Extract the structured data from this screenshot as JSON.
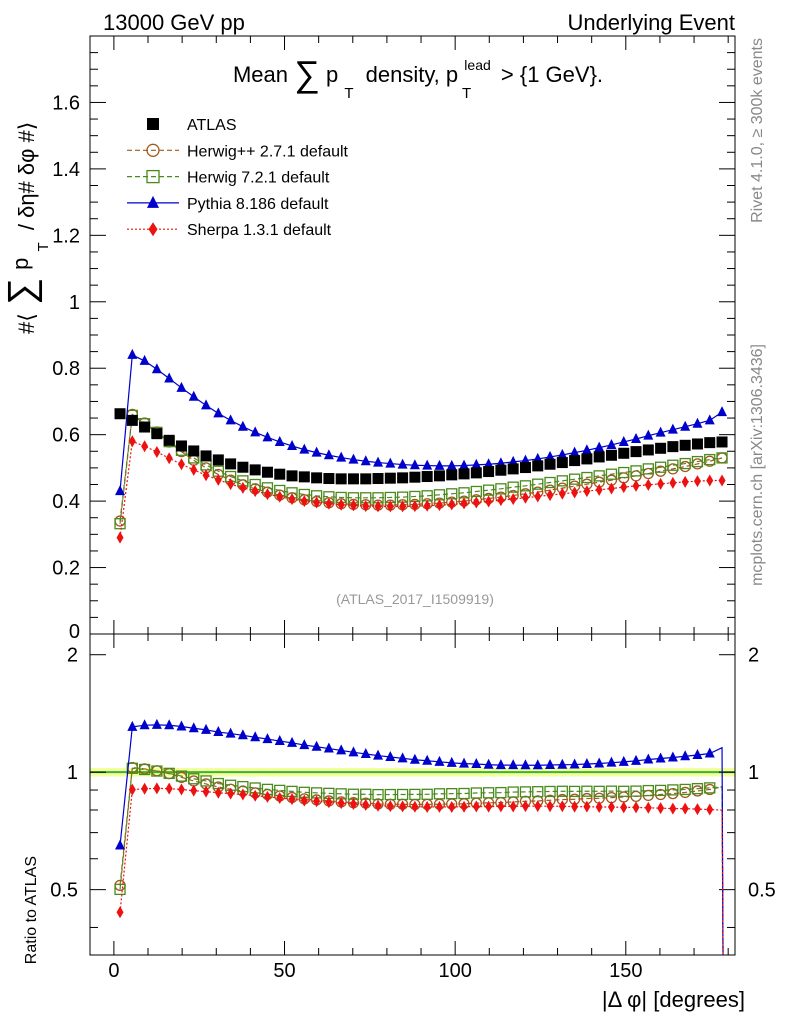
{
  "header": {
    "left": "13000 GeV pp",
    "right": "Underlying Event"
  },
  "side_labels": {
    "rivet": "Rivet 4.1.0, ≥ 300k events",
    "mcplots": "mcplots.cern.ch [arXiv:1306.3436]"
  },
  "chart_data": {
    "type": "scatter",
    "title": "Mean ∑ pT density, pT lead > {1 GeV}",
    "title_parts": {
      "mean": "Mean",
      "sigma": "∑",
      "p": "p",
      "sub": "T",
      "density": "density,",
      "p2": "p",
      "lead": "lead",
      "gt": "> {1 GeV}."
    },
    "reference": "(ATLAS_2017_I1509919)",
    "xlabel": "|Δ φ| [degrees]",
    "ylabel": "#⟨ ∑ pT / δη# δφ #⟩",
    "ylabel_parts": {
      "open": "#⟨",
      "sigma": "∑",
      "p": "p",
      "sub": "T",
      "rest": "/ δη# δφ #⟩"
    },
    "ratio_ylabel": "Ratio to ATLAS",
    "xlim": [
      -7,
      182
    ],
    "ylim": [
      0,
      1.8
    ],
    "ratio_ylim": [
      0.34,
      2.26
    ],
    "x_ticks": [
      "0",
      "50",
      "100",
      "150"
    ],
    "x_tick_values": [
      0,
      50,
      100,
      150
    ],
    "y_ticks": [
      "0.2",
      "0.4",
      "0.6",
      "0.8",
      "1",
      "1.2",
      "1.4",
      "1.6"
    ],
    "y_tick_values": [
      0.2,
      0.4,
      0.6,
      0.8,
      1.0,
      1.2,
      1.4,
      1.6
    ],
    "y_zero_label": "0",
    "ratio_ticks": [
      "0.5",
      "1",
      "2"
    ],
    "ratio_tick_values": [
      0.5,
      1,
      2
    ],
    "x": [
      1.8,
      5.4,
      9.0,
      12.6,
      16.2,
      19.8,
      23.4,
      27.0,
      30.6,
      34.2,
      37.8,
      41.4,
      45.0,
      48.6,
      52.2,
      55.8,
      59.4,
      63.0,
      66.6,
      70.2,
      73.8,
      77.4,
      81.0,
      84.6,
      88.2,
      91.8,
      95.4,
      99.0,
      102.6,
      106.2,
      109.8,
      113.4,
      117.0,
      120.6,
      124.2,
      127.8,
      131.4,
      135.0,
      138.6,
      142.2,
      145.8,
      149.4,
      153.0,
      156.6,
      160.2,
      163.8,
      167.4,
      171.0,
      174.6,
      178.2
    ],
    "series": [
      {
        "name": "ATLAS",
        "legend": "ATLAS",
        "color": "#000000",
        "marker": "square-filled",
        "line": "none",
        "values": [
          0.663,
          0.643,
          0.623,
          0.603,
          0.583,
          0.566,
          0.551,
          0.536,
          0.524,
          0.512,
          0.502,
          0.494,
          0.487,
          0.481,
          0.476,
          0.473,
          0.47,
          0.468,
          0.467,
          0.467,
          0.467,
          0.468,
          0.469,
          0.47,
          0.472,
          0.474,
          0.476,
          0.479,
          0.482,
          0.485,
          0.489,
          0.493,
          0.497,
          0.501,
          0.506,
          0.511,
          0.516,
          0.522,
          0.527,
          0.533,
          0.538,
          0.544,
          0.549,
          0.554,
          0.559,
          0.564,
          0.568,
          0.572,
          0.576,
          0.578
        ]
      },
      {
        "name": "Herwig++ 2.7.1 default",
        "legend": "Herwig++ 2.7.1 default",
        "color": "#a0581c",
        "marker": "circle-open",
        "line": "dashed",
        "values": [
          0.34,
          0.661,
          0.635,
          0.608,
          0.578,
          0.549,
          0.523,
          0.5,
          0.48,
          0.463,
          0.449,
          0.437,
          0.427,
          0.418,
          0.41,
          0.404,
          0.399,
          0.395,
          0.392,
          0.39,
          0.389,
          0.388,
          0.388,
          0.389,
          0.39,
          0.392,
          0.394,
          0.397,
          0.4,
          0.404,
          0.408,
          0.412,
          0.417,
          0.422,
          0.427,
          0.433,
          0.439,
          0.445,
          0.451,
          0.457,
          0.463,
          0.47,
          0.476,
          0.483,
          0.49,
          0.497,
          0.504,
          0.512,
          0.52,
          0.53
        ]
      },
      {
        "name": "Herwig 7.2.1 default",
        "legend": "Herwig 7.2.1 default",
        "color": "#4a8a1c",
        "marker": "square-open",
        "line": "dashed",
        "values": [
          0.332,
          0.658,
          0.633,
          0.607,
          0.579,
          0.553,
          0.53,
          0.509,
          0.49,
          0.474,
          0.461,
          0.45,
          0.44,
          0.432,
          0.425,
          0.42,
          0.416,
          0.413,
          0.411,
          0.41,
          0.41,
          0.41,
          0.411,
          0.412,
          0.414,
          0.416,
          0.419,
          0.422,
          0.425,
          0.429,
          0.433,
          0.437,
          0.442,
          0.446,
          0.451,
          0.456,
          0.461,
          0.466,
          0.471,
          0.476,
          0.481,
          0.486,
          0.491,
          0.497,
          0.502,
          0.508,
          0.513,
          0.519,
          0.525,
          0.53
        ]
      },
      {
        "name": "Pythia 8.186 default",
        "legend": "Pythia 8.186 default",
        "color": "#0000cc",
        "marker": "triangle-filled",
        "line": "solid",
        "values": [
          0.43,
          0.84,
          0.822,
          0.797,
          0.769,
          0.741,
          0.714,
          0.688,
          0.664,
          0.643,
          0.624,
          0.607,
          0.592,
          0.578,
          0.566,
          0.555,
          0.546,
          0.538,
          0.531,
          0.525,
          0.52,
          0.516,
          0.513,
          0.51,
          0.508,
          0.507,
          0.506,
          0.506,
          0.507,
          0.509,
          0.511,
          0.514,
          0.518,
          0.522,
          0.527,
          0.533,
          0.539,
          0.546,
          0.553,
          0.561,
          0.569,
          0.578,
          0.587,
          0.597,
          0.606,
          0.615,
          0.624,
          0.633,
          0.643,
          0.668
        ]
      },
      {
        "name": "Sherpa 1.3.1 default",
        "legend": "Sherpa 1.3.1 default",
        "color": "#ee1111",
        "marker": "diamond-filled",
        "line": "dotted",
        "values": [
          0.29,
          0.58,
          0.565,
          0.548,
          0.529,
          0.511,
          0.494,
          0.478,
          0.464,
          0.451,
          0.44,
          0.43,
          0.421,
          0.413,
          0.406,
          0.4,
          0.396,
          0.392,
          0.389,
          0.387,
          0.385,
          0.384,
          0.384,
          0.384,
          0.385,
          0.386,
          0.388,
          0.39,
          0.393,
          0.396,
          0.399,
          0.403,
          0.406,
          0.41,
          0.414,
          0.418,
          0.422,
          0.426,
          0.43,
          0.434,
          0.438,
          0.442,
          0.446,
          0.449,
          0.452,
          0.455,
          0.458,
          0.46,
          0.462,
          0.462
        ]
      }
    ]
  }
}
